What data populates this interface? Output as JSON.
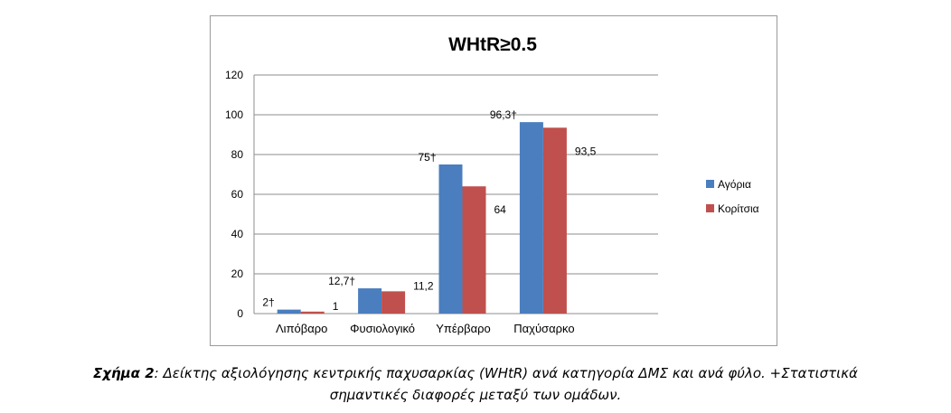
{
  "chart_data": {
    "type": "bar",
    "title": "WHtR≥0.5",
    "categories": [
      "Λιπόβαρο",
      "Φυσιολογικό",
      "Υπέρβαρο",
      "Παχύσαρκο"
    ],
    "series": [
      {
        "name": "Αγόρια",
        "color": "#4a7ebf",
        "values": [
          2,
          12.7,
          75,
          96.3
        ],
        "labels": [
          "2†",
          "12,7†",
          "75†",
          "96,3†"
        ]
      },
      {
        "name": "Κορίτσια",
        "color": "#c0504d",
        "values": [
          1,
          11.2,
          64,
          93.5
        ],
        "labels": [
          "1",
          "11,2",
          "64",
          "93,5"
        ]
      }
    ],
    "ylim": [
      0,
      120
    ],
    "yticks": [
      "0",
      "20",
      "40",
      "60",
      "80",
      "100",
      "120"
    ],
    "grid": true,
    "legend": "right"
  },
  "caption": {
    "prefix": "Σχήμα 2",
    "line1": ": Δείκτης αξιολόγησης κεντρικής παχυσαρκίας (WHtR) ανά κατηγορία ΔΜΣ και ανά φύλο. +Στατιστικά",
    "line2": "σημαντικές διαφορές μεταξύ των ομάδων."
  }
}
